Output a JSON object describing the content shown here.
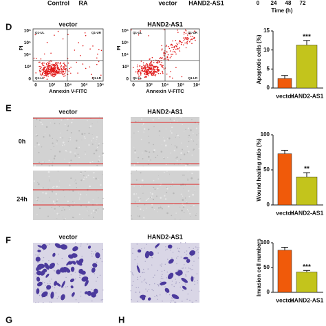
{
  "header_fragments": {
    "left_labels": [
      "Control",
      "RA"
    ],
    "middle_labels": [
      "vector",
      "HAND2-AS1"
    ],
    "time_ticks": [
      0,
      24,
      48,
      72
    ],
    "time_label": "Time (h)"
  },
  "panels": [
    {
      "letter": "D",
      "columns": [
        "vector",
        "HAND2-AS1"
      ],
      "flow": {
        "x_label": "Annexin V-FITC",
        "y_label": "PI",
        "x_ticks": [
          "0",
          "10³",
          "10⁴",
          "10⁵",
          "10⁶"
        ],
        "y_ticks": [
          "10⁶",
          "10⁵",
          "10⁴",
          "10³",
          "0"
        ],
        "quadrants": [
          "Q1-UL",
          "Q1-UR",
          "Q1-LL",
          "Q1-LR"
        ]
      },
      "chart": {
        "type": "bar",
        "ylabel": "Apoptotic cells (%)",
        "categories": [
          "vector",
          "HAND2-AS1"
        ],
        "values": [
          2.5,
          11.3
        ],
        "errors": [
          0.8,
          1.2
        ],
        "colors": [
          "#f05a0a",
          "#c3c41c"
        ],
        "ylim": [
          0,
          15
        ],
        "yticks": [
          0,
          5,
          10,
          15
        ],
        "annotation": "***"
      }
    },
    {
      "letter": "E",
      "columns": [
        "vector",
        "HAND2-AS1"
      ],
      "rows": [
        "0h",
        "24h"
      ],
      "chart": {
        "type": "bar",
        "ylabel": "Wound healing ratio (%)",
        "categories": [
          "vector",
          "HAND2-AS1"
        ],
        "values": [
          73,
          40
        ],
        "errors": [
          5,
          6
        ],
        "colors": [
          "#f05a0a",
          "#c3c41c"
        ],
        "ylim": [
          0,
          100
        ],
        "yticks": [
          0,
          50,
          100
        ],
        "annotation": "**"
      }
    },
    {
      "letter": "F",
      "columns": [
        "vector",
        "HAND2-AS1"
      ],
      "chart": {
        "type": "bar",
        "ylabel": "Invasion cell numbers",
        "categories": [
          "vector",
          "HAND2-AS1"
        ],
        "values": [
          85,
          41
        ],
        "errors": [
          6,
          3
        ],
        "colors": [
          "#f05a0a",
          "#c3c41c"
        ],
        "ylim": [
          0,
          100
        ],
        "yticks": [
          0,
          50,
          100
        ],
        "annotation": "***"
      }
    }
  ],
  "footer_letters": [
    "G",
    "H"
  ]
}
